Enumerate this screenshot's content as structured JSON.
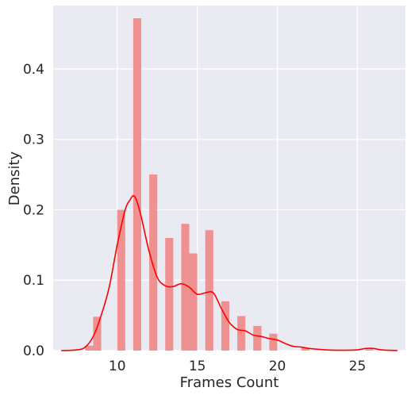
{
  "chart_data": {
    "type": "histogram",
    "xlabel": "Frames Count",
    "ylabel": "Density",
    "xlim": [
      6.0,
      28.0
    ],
    "ylim": [
      0.0,
      0.49
    ],
    "xticks": [
      10,
      15,
      20,
      25
    ],
    "yticks": [
      0.0,
      0.1,
      0.2,
      0.3,
      0.4
    ],
    "ytick_labels": [
      "0.0",
      "0.1",
      "0.2",
      "0.3",
      "0.4"
    ],
    "bin_width": 0.5,
    "grid": true,
    "colors": {
      "bar": "#f08080",
      "bar_alpha": 0.85,
      "kde": "#ff0000",
      "background": "#eaeaf2",
      "grid": "#ffffff"
    },
    "bars": [
      {
        "x0": 8.0,
        "x1": 8.5,
        "density": 0.007
      },
      {
        "x0": 8.5,
        "x1": 9.0,
        "density": 0.048
      },
      {
        "x0": 10.0,
        "x1": 10.5,
        "density": 0.2
      },
      {
        "x0": 11.0,
        "x1": 11.5,
        "density": 0.472
      },
      {
        "x0": 12.0,
        "x1": 12.5,
        "density": 0.25
      },
      {
        "x0": 13.0,
        "x1": 13.5,
        "density": 0.16
      },
      {
        "x0": 14.0,
        "x1": 14.5,
        "density": 0.18
      },
      {
        "x0": 14.5,
        "x1": 15.0,
        "density": 0.138
      },
      {
        "x0": 15.5,
        "x1": 16.0,
        "density": 0.171
      },
      {
        "x0": 16.5,
        "x1": 17.0,
        "density": 0.07
      },
      {
        "x0": 17.5,
        "x1": 18.0,
        "density": 0.049
      },
      {
        "x0": 18.5,
        "x1": 19.0,
        "density": 0.035
      },
      {
        "x0": 19.5,
        "x1": 20.0,
        "density": 0.024
      },
      {
        "x0": 21.5,
        "x1": 22.0,
        "density": 0.004
      },
      {
        "x0": 25.5,
        "x1": 26.0,
        "density": 0.002
      }
    ],
    "kde": {
      "x": [
        6.5,
        7.5,
        8.0,
        8.5,
        9.0,
        9.5,
        10.0,
        10.5,
        10.8,
        11.0,
        11.2,
        11.5,
        12.0,
        12.5,
        13.0,
        13.5,
        14.0,
        14.5,
        15.0,
        15.5,
        16.0,
        16.5,
        17.0,
        17.5,
        18.0,
        18.5,
        19.0,
        19.5,
        20.0,
        20.5,
        21.0,
        21.5,
        22.0,
        23.0,
        24.0,
        25.0,
        25.5,
        26.0,
        26.5,
        27.5
      ],
      "y": [
        0.0,
        0.001,
        0.005,
        0.02,
        0.05,
        0.09,
        0.15,
        0.2,
        0.214,
        0.22,
        0.214,
        0.19,
        0.14,
        0.104,
        0.092,
        0.091,
        0.095,
        0.09,
        0.08,
        0.082,
        0.082,
        0.06,
        0.04,
        0.03,
        0.028,
        0.022,
        0.02,
        0.017,
        0.015,
        0.01,
        0.006,
        0.005,
        0.003,
        0.001,
        0.0005,
        0.001,
        0.003,
        0.003,
        0.001,
        0.0
      ]
    }
  }
}
